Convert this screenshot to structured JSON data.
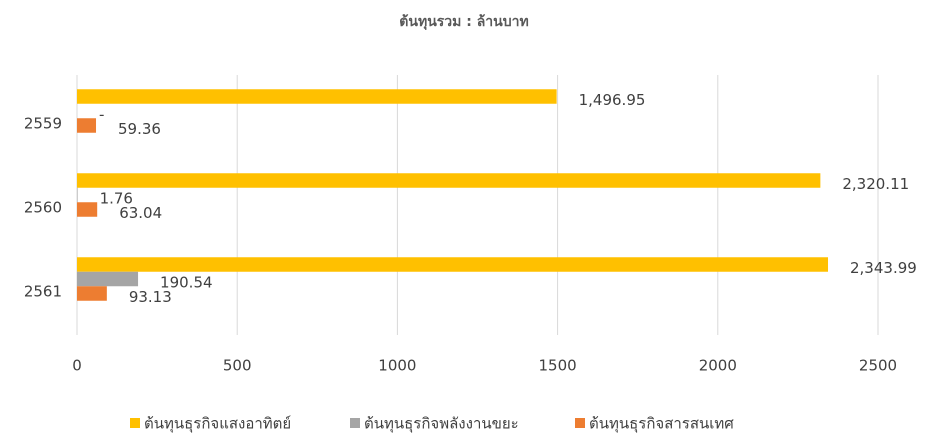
{
  "chart_data": {
    "type": "bar",
    "orientation": "horizontal",
    "title": "ต้นทุนรวม : ล้านบาท",
    "categories": [
      "2559",
      "2560",
      "2561"
    ],
    "series": [
      {
        "name": "ต้นทุนธุรกิจแสงอาทิตย์",
        "color": "#ffc000",
        "values": [
          1496.95,
          2320.11,
          2343.99
        ],
        "value_labels": [
          "1,496.95",
          "2,320.11",
          "2,343.99"
        ]
      },
      {
        "name": "ต้นทุนธุรกิจพลังงานขยะ",
        "color": "#a5a5a5",
        "values": [
          0,
          1.76,
          190.54
        ],
        "value_labels": [
          "-",
          "1.76",
          "190.54"
        ]
      },
      {
        "name": "ต้นทุนธุรกิจสารสนเทศ",
        "color": "#ed7d31",
        "values": [
          59.36,
          63.04,
          93.13
        ],
        "value_labels": [
          "59.36",
          "63.04",
          "93.13"
        ]
      }
    ],
    "xlim": [
      0,
      2500
    ],
    "xticks": [
      0,
      500,
      1000,
      1500,
      2000,
      2500
    ],
    "grid": true,
    "legend": "bottom"
  }
}
